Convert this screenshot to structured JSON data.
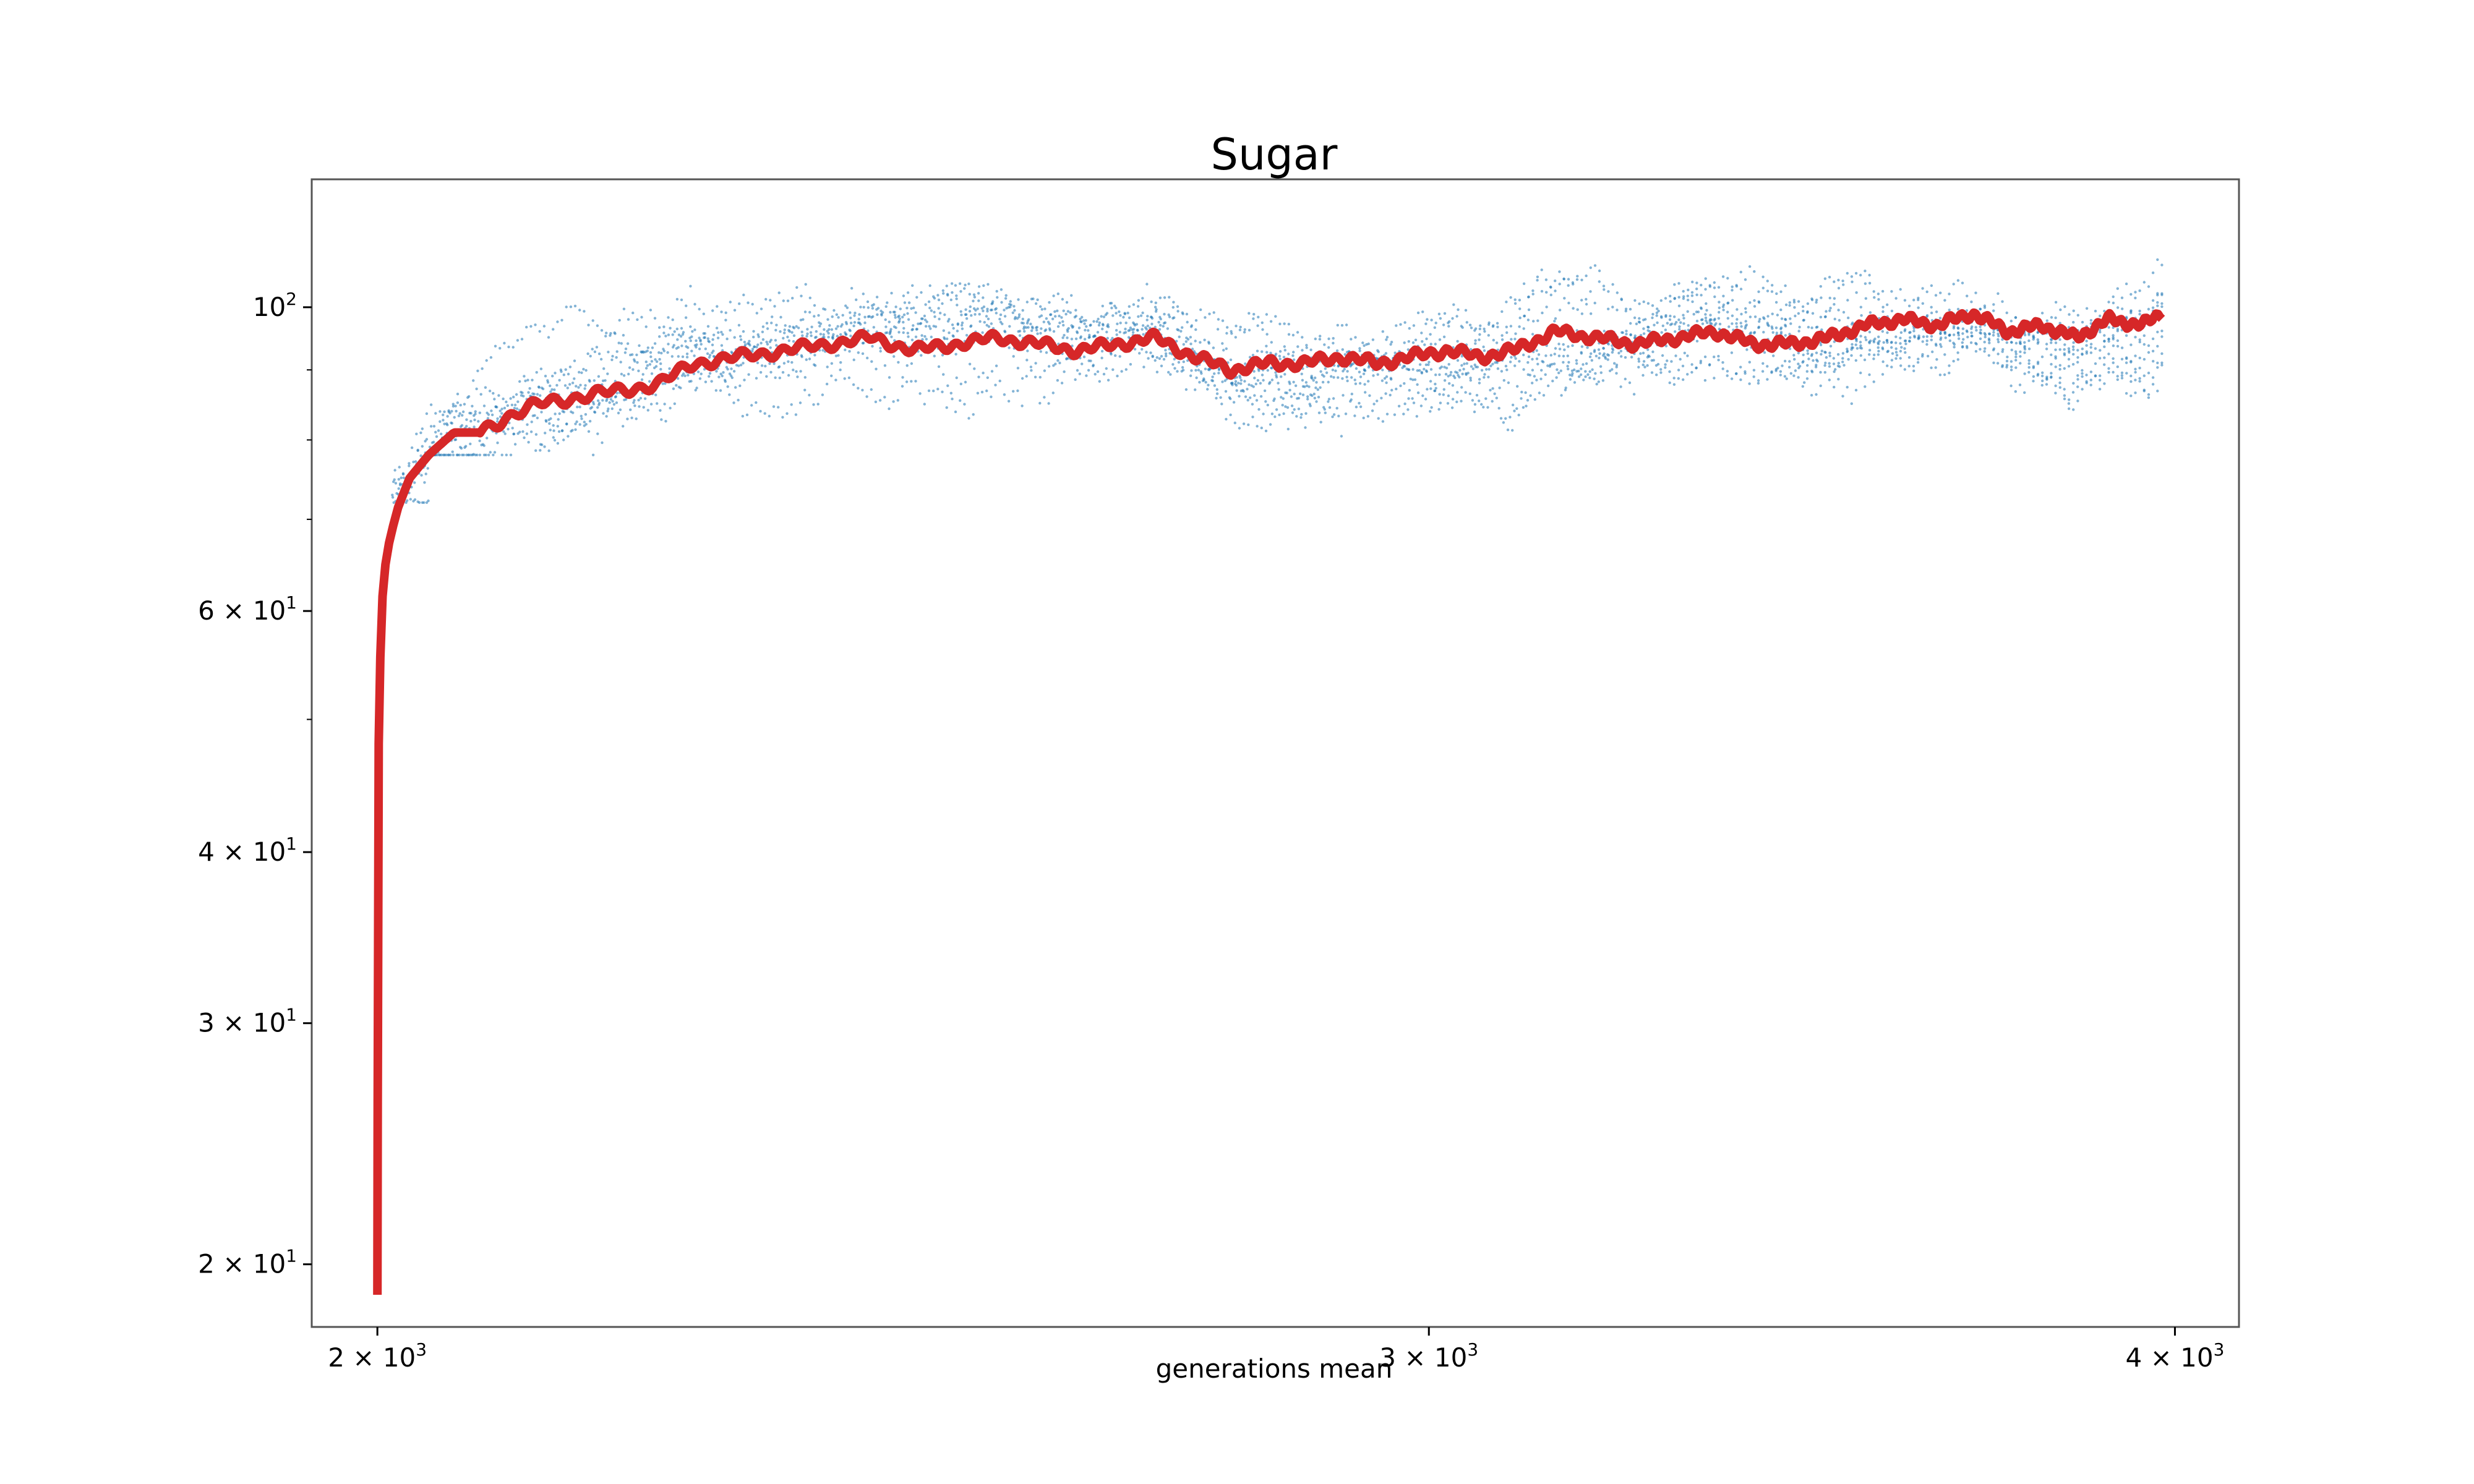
{
  "chart_data": {
    "type": "scatter",
    "title": "Sugar",
    "xlabel": "generations mean",
    "ylabel": "",
    "xscale": "log",
    "yscale": "log",
    "xlim": [
      1950,
      4100
    ],
    "ylim": [
      18,
      124
    ],
    "grid": false,
    "legend": "none",
    "x_ticks": [
      {
        "value": 2000,
        "mantissa": "2",
        "base": "10",
        "exp": "3"
      },
      {
        "value": 3000,
        "mantissa": "3",
        "base": "10",
        "exp": "3"
      },
      {
        "value": 4000,
        "mantissa": "4",
        "base": "10",
        "exp": "3"
      }
    ],
    "y_ticks": [
      {
        "value": 20,
        "mantissa": "2",
        "base": "10",
        "exp": "1"
      },
      {
        "value": 30,
        "mantissa": "3",
        "base": "10",
        "exp": "1"
      },
      {
        "value": 40,
        "mantissa": "4",
        "base": "10",
        "exp": "1"
      },
      {
        "value": 60,
        "mantissa": "6",
        "base": "10",
        "exp": "1"
      },
      {
        "value": 100,
        "mantissa": "",
        "base": "10",
        "exp": "2"
      }
    ],
    "y_minor_ticks": [
      50,
      70,
      80,
      90
    ],
    "colors": {
      "scatter": "#1f77b4",
      "mean_line": "#d62728"
    },
    "series": [
      {
        "kind": "scatter",
        "color": "#1f77b4",
        "x_range": [
          2000,
          3980
        ],
        "y_band": [
          78,
          118
        ],
        "n_runs": 10,
        "points_per_run": 400
      },
      {
        "kind": "line",
        "color": "#d62728",
        "x": [
          2000,
          2001,
          2003,
          2007,
          2015,
          2025,
          2040,
          2060,
          2080,
          2100,
          2130,
          2160,
          2200,
          2230,
          2260,
          2300,
          2340,
          2380,
          2420,
          2460,
          2500,
          2540,
          2580,
          2620,
          2660,
          2700,
          2740,
          2780,
          2820,
          2860,
          2900,
          2940,
          2980,
          3020,
          3060,
          3100,
          3150,
          3200,
          3250,
          3300,
          3350,
          3400,
          3450,
          3500,
          3550,
          3600,
          3650,
          3700,
          3750,
          3800,
          3850,
          3900,
          3950,
          3980
        ],
        "y": [
          19,
          48,
          60,
          66,
          71,
          75,
          78,
          81,
          81,
          83,
          85,
          86,
          87,
          88,
          91,
          92,
          93,
          94,
          95,
          93,
          94,
          95,
          94,
          93,
          94,
          95,
          92,
          90,
          91,
          91,
          92,
          91,
          92,
          93,
          92,
          93,
          96,
          95,
          94,
          95,
          96,
          94,
          94,
          95,
          97,
          98,
          97,
          99,
          96,
          97,
          95,
          98,
          97,
          99
        ]
      }
    ]
  }
}
